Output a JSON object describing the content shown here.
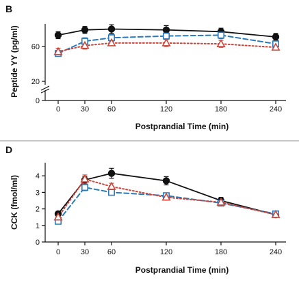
{
  "chart_data": [
    {
      "type": "line",
      "panel_label": "B",
      "xlabel": "Postprandial Time (min)",
      "ylabel": "Peptide YY (pg/ml)",
      "x": [
        0,
        30,
        60,
        120,
        180,
        240
      ],
      "x_tick_labels": [
        "0",
        "30",
        "60",
        "120",
        "180",
        "240"
      ],
      "y_tick_values": [
        0,
        20,
        60
      ],
      "y_tick_labels": [
        "0",
        "20",
        "60"
      ],
      "y_axis_break": true,
      "grid": false,
      "legend": "none",
      "series": [
        {
          "marker": "filled-circle",
          "line_style": "solid",
          "color": "#111111",
          "values": [
            73,
            79,
            80,
            79,
            77,
            71
          ],
          "error": [
            4,
            4,
            5,
            5,
            4,
            4
          ]
        },
        {
          "marker": "open-square",
          "line_style": "dashed",
          "color": "#2a7ab9",
          "values": [
            52,
            66,
            70,
            72,
            73,
            63
          ],
          "error": [
            3,
            4,
            4,
            4,
            4,
            3
          ]
        },
        {
          "marker": "open-triangle",
          "line_style": "dotted",
          "color": "#c8453a",
          "values": [
            54,
            61,
            64,
            64,
            63,
            59
          ],
          "error": [
            4,
            4,
            3,
            4,
            4,
            3
          ]
        }
      ]
    },
    {
      "type": "line",
      "panel_label": "D",
      "xlabel": "Postprandial Time (min)",
      "ylabel": "CCK (fmol/ml)",
      "x": [
        0,
        30,
        60,
        120,
        180,
        240
      ],
      "x_tick_labels": [
        "0",
        "30",
        "60",
        "120",
        "180",
        "240"
      ],
      "y_tick_values": [
        0,
        1,
        2,
        3,
        4
      ],
      "y_tick_labels": [
        "0",
        "1",
        "2",
        "3",
        "4"
      ],
      "ylim": [
        0,
        4.8
      ],
      "grid": false,
      "legend": "none",
      "series": [
        {
          "marker": "filled-circle",
          "line_style": "solid",
          "color": "#111111",
          "values": [
            1.7,
            3.75,
            4.15,
            3.7,
            2.5,
            1.65
          ],
          "error": [
            0.15,
            0.2,
            0.3,
            0.25,
            0.2,
            0.1
          ]
        },
        {
          "marker": "open-square",
          "line_style": "dashed",
          "color": "#2a7ab9",
          "values": [
            1.25,
            3.3,
            3.0,
            2.8,
            2.35,
            1.7
          ],
          "error": [
            0.1,
            0.2,
            0.15,
            0.15,
            0.15,
            0.1
          ]
        },
        {
          "marker": "open-triangle",
          "line_style": "dotted",
          "color": "#c8453a",
          "values": [
            1.5,
            3.8,
            3.35,
            2.7,
            2.4,
            1.65
          ],
          "error": [
            0.12,
            0.25,
            0.2,
            0.15,
            0.15,
            0.1
          ]
        }
      ]
    }
  ]
}
